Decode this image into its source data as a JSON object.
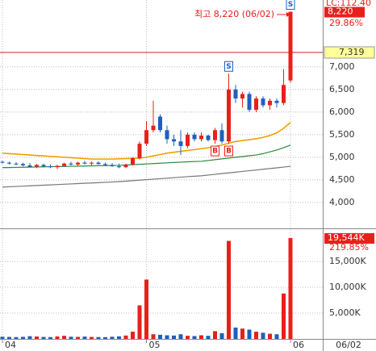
{
  "chart_data": [
    {
      "type": "candlestick",
      "categories": [
        "04",
        null,
        null,
        null,
        null,
        null,
        null,
        null,
        null,
        null,
        null,
        null,
        null,
        null,
        null,
        null,
        null,
        null,
        null,
        null,
        null,
        "05",
        null,
        null,
        null,
        null,
        null,
        null,
        null,
        null,
        null,
        null,
        null,
        null,
        null,
        null,
        null,
        null,
        null,
        null,
        null,
        null,
        "06"
      ],
      "open": [
        4900,
        4880,
        4860,
        4850,
        4820,
        4790,
        4830,
        4800,
        4780,
        4810,
        4860,
        4840,
        4880,
        4860,
        4880,
        4850,
        4830,
        4800,
        4780,
        4840,
        4980,
        5300,
        5600,
        5900,
        5600,
        5400,
        5350,
        5250,
        5500,
        5400,
        5480,
        5380,
        5600,
        5350,
        6500,
        6300,
        6400,
        6050,
        6300,
        6150,
        6250,
        6200,
        6700
      ],
      "high": [
        4920,
        4900,
        4890,
        4880,
        4870,
        4850,
        4860,
        4840,
        4830,
        4880,
        4900,
        4900,
        4920,
        4900,
        4910,
        4880,
        4870,
        4860,
        4860,
        5000,
        5350,
        5800,
        6250,
        5950,
        5700,
        5500,
        5600,
        5550,
        5550,
        5550,
        5500,
        5650,
        5750,
        6850,
        6600,
        6450,
        6450,
        6350,
        6350,
        6300,
        6300,
        6950,
        8220
      ],
      "low": [
        4860,
        4840,
        4820,
        4800,
        4780,
        4760,
        4780,
        4760,
        4740,
        4790,
        4820,
        4810,
        4840,
        4820,
        4840,
        4810,
        4790,
        4760,
        4760,
        4820,
        4950,
        5250,
        5550,
        5550,
        5300,
        5250,
        5050,
        5200,
        5350,
        5350,
        5350,
        5300,
        5300,
        5300,
        6200,
        6100,
        6000,
        6000,
        6100,
        6050,
        6100,
        6150,
        6650
      ],
      "close": [
        4880,
        4860,
        4850,
        4820,
        4790,
        4830,
        4800,
        4780,
        4810,
        4860,
        4840,
        4880,
        4860,
        4880,
        4850,
        4830,
        4800,
        4780,
        4840,
        4980,
        5300,
        5600,
        5700,
        5600,
        5400,
        5350,
        5250,
        5500,
        5400,
        5480,
        5380,
        5600,
        5350,
        6500,
        6300,
        6400,
        6050,
        6300,
        6150,
        6250,
        6200,
        6600,
        8220
      ],
      "up_color": "#e8201c",
      "down_color": "#1f5fbf",
      "series": [
        {
          "color": "#f0a000",
          "values": [
            5090,
            5080,
            5070,
            5060,
            5050,
            5040,
            5030,
            5020,
            5010,
            5000,
            4990,
            4980,
            4970,
            4960,
            4960,
            4960,
            4960,
            4965,
            4970,
            4975,
            4980,
            5000,
            5030,
            5060,
            5090,
            5110,
            5130,
            5150,
            5170,
            5190,
            5210,
            5240,
            5270,
            5310,
            5350,
            5370,
            5390,
            5410,
            5440,
            5480,
            5540,
            5640,
            5770
          ]
        },
        {
          "color": "#2a8a3a",
          "values": [
            4770,
            4773,
            4776,
            4779,
            4782,
            4785,
            4788,
            4791,
            4794,
            4797,
            4800,
            4803,
            4806,
            4809,
            4812,
            4815,
            4818,
            4820,
            4828,
            4836,
            4844,
            4852,
            4860,
            4868,
            4876,
            4884,
            4892,
            4900,
            4905,
            4910,
            4928,
            4946,
            4964,
            4982,
            5000,
            5016,
            5033,
            5050,
            5080,
            5120,
            5160,
            5210,
            5270
          ]
        },
        {
          "color": "#777777",
          "values": [
            4340,
            4347,
            4354,
            4361,
            4368,
            4375,
            4382,
            4389,
            4396,
            4403,
            4410,
            4417,
            4424,
            4431,
            4438,
            4445,
            4452,
            4460,
            4471,
            4482,
            4493,
            4504,
            4515,
            4526,
            4537,
            4548,
            4559,
            4570,
            4580,
            4590,
            4606,
            4622,
            4638,
            4654,
            4670,
            4686,
            4702,
            4718,
            4734,
            4750,
            4766,
            4782,
            4800
          ]
        }
      ],
      "buy_signals": [
        null,
        null,
        null,
        null,
        null,
        null,
        null,
        null,
        null,
        null,
        null,
        null,
        null,
        null,
        null,
        null,
        null,
        null,
        null,
        null,
        null,
        null,
        null,
        null,
        null,
        null,
        null,
        null,
        null,
        null,
        null,
        "B",
        null,
        "B",
        null,
        null,
        null,
        null,
        null,
        null,
        null,
        null,
        null
      ],
      "sell_signals": [
        null,
        null,
        null,
        null,
        null,
        null,
        null,
        null,
        null,
        null,
        null,
        null,
        null,
        null,
        null,
        null,
        null,
        null,
        null,
        null,
        null,
        null,
        null,
        null,
        null,
        null,
        null,
        null,
        null,
        null,
        null,
        null,
        null,
        "S",
        null,
        null,
        null,
        null,
        null,
        null,
        null,
        null,
        "S"
      ],
      "ylim": [
        3480,
        8480
      ],
      "yticks": [
        {
          "value": 4000,
          "label": "4,000"
        },
        {
          "value": 4500,
          "label": "4,500"
        },
        {
          "value": 5000,
          "label": "5,000"
        },
        {
          "value": 5500,
          "label": "5,500"
        },
        {
          "value": 6000,
          "label": "6,000"
        },
        {
          "value": 6500,
          "label": "6,500"
        },
        {
          "value": 7000,
          "label": "7,000"
        }
      ],
      "reference_price": {
        "value": 7319,
        "label": "7,319"
      },
      "last_price": {
        "value": 8220,
        "label": "8,220"
      },
      "change": "29.86%",
      "indicator": "LC:112.40",
      "annotation": "최고 8,220 (06/02)",
      "date_label": "06/02"
    },
    {
      "type": "bar",
      "values": [
        420,
        380,
        350,
        400,
        520,
        460,
        380,
        350,
        480,
        600,
        420,
        390,
        450,
        380,
        360,
        340,
        420,
        500,
        650,
        1400,
        6500,
        11500,
        900,
        800,
        700,
        650,
        900,
        600,
        550,
        700,
        600,
        1500,
        1100,
        19000,
        2200,
        2000,
        1800,
        1400,
        1200,
        1000,
        900,
        8800,
        19544
      ],
      "ylim": [
        0,
        20800
      ],
      "yticks": [
        {
          "value": 5000,
          "label": "5,000K"
        },
        {
          "value": 10000,
          "label": "10,000K"
        },
        {
          "value": 15000,
          "label": "15,000K"
        }
      ],
      "last_volume": {
        "value": 19544,
        "label": "19,544K"
      },
      "change": "219.85%"
    }
  ]
}
